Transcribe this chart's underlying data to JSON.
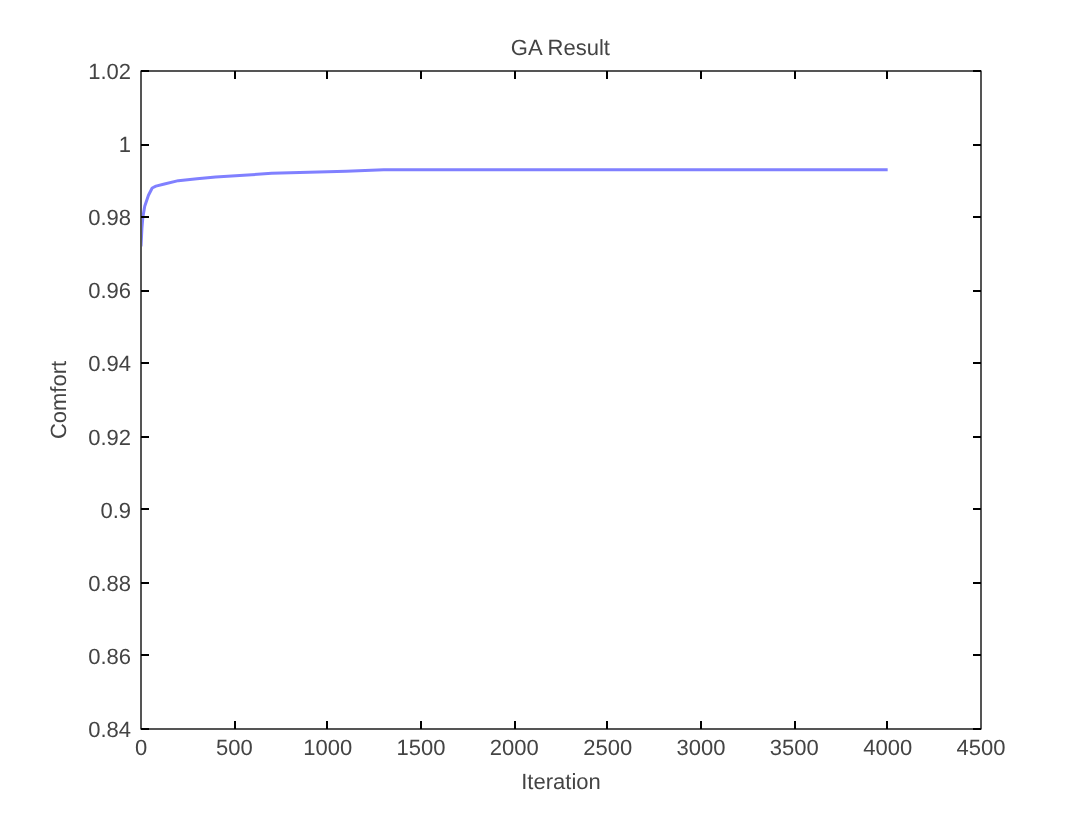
{
  "chart_data": {
    "type": "line",
    "title": "GA Result",
    "xlabel": "Iteration",
    "ylabel": "Comfort",
    "x": [
      0,
      5,
      10,
      20,
      40,
      60,
      80,
      120,
      200,
      300,
      400,
      550,
      700,
      900,
      1100,
      1300,
      2000,
      3000,
      4000
    ],
    "series": [
      {
        "color": "#8080ff",
        "values": [
          0.972,
          0.977,
          0.98,
          0.983,
          0.986,
          0.988,
          0.9885,
          0.989,
          0.99,
          0.9905,
          0.991,
          0.9915,
          0.992,
          0.9923,
          0.9926,
          0.993,
          0.993,
          0.993,
          0.993
        ]
      }
    ],
    "xlim": [
      0,
      4500
    ],
    "xticks": [
      0,
      500,
      1000,
      1500,
      2000,
      2500,
      3000,
      3500,
      4000,
      4500
    ],
    "ylim": [
      0.84,
      1.02
    ],
    "yticks": [
      0.84,
      0.86,
      0.88,
      0.9,
      0.92,
      0.94,
      0.96,
      0.98,
      1,
      1.02
    ],
    "grid": false
  }
}
